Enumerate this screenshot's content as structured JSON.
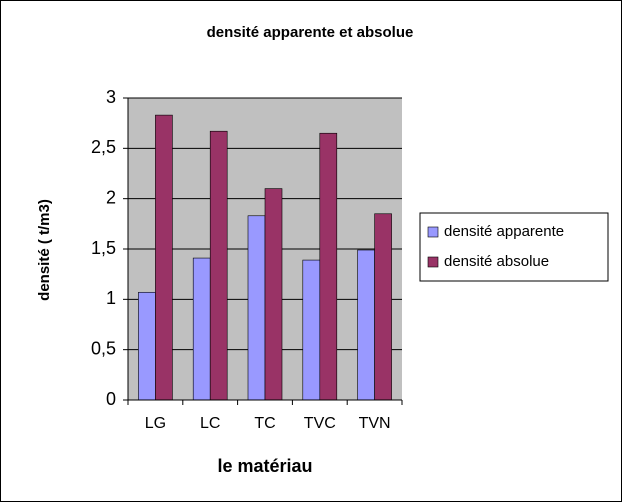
{
  "chart_data": {
    "type": "bar",
    "title": "densité apparente et absolue",
    "xlabel": "le matériau",
    "ylabel": "densité ( t/m3)",
    "categories": [
      "LG",
      "LC",
      "TC",
      "TVC",
      "TVN"
    ],
    "series": [
      {
        "name": "densité apparente",
        "color": "#9999ff",
        "values": [
          1.07,
          1.41,
          1.83,
          1.39,
          1.49
        ]
      },
      {
        "name": "densité absolue",
        "color": "#993366",
        "values": [
          2.83,
          2.67,
          2.1,
          2.65,
          1.85
        ]
      }
    ],
    "ylim": [
      0,
      3
    ],
    "yticks": [
      0,
      {
        "value": 0.5,
        "label": "0,5"
      },
      1,
      {
        "value": 1.5,
        "label": "1,5"
      },
      2,
      {
        "value": 2.5,
        "label": "2,5"
      },
      3
    ],
    "grid": true,
    "legend": "right",
    "plot_background": "#c0c0c0"
  }
}
